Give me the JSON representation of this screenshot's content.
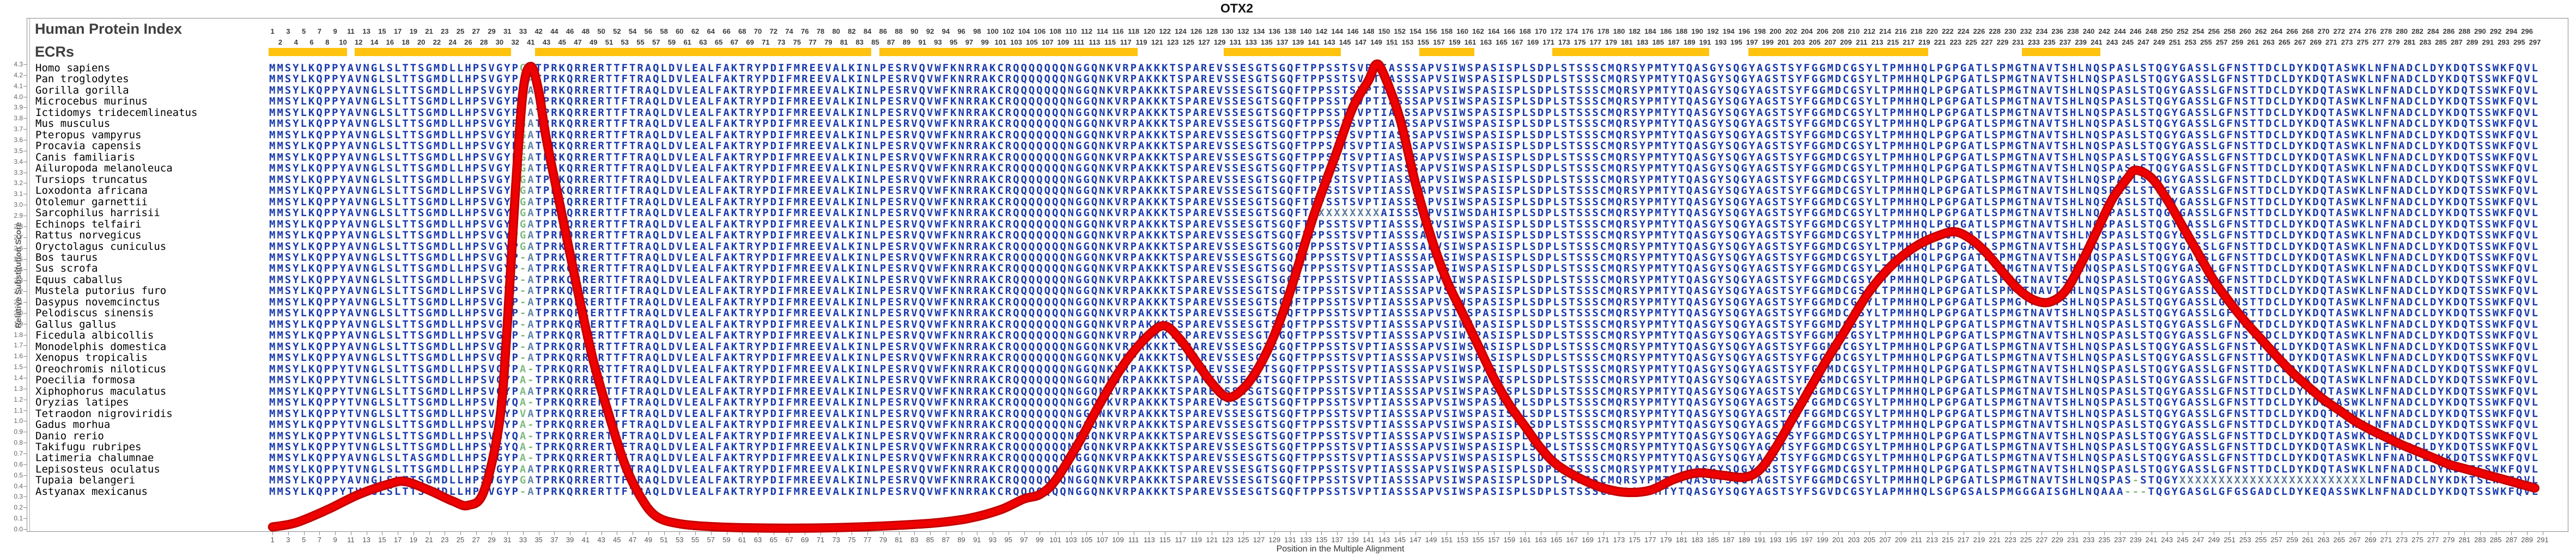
{
  "title": "OTX2",
  "left_panel": {
    "human_protein_index_label": "Human Protein Index",
    "ecrs_label": "ECRs",
    "species": [
      "Homo sapiens",
      "Pan troglodytes",
      "Gorilla gorilla",
      "Microcebus murinus",
      "Ictidomys tridecemlineatus",
      "Mus musculus",
      "Pteropus vampyrus",
      "Procavia capensis",
      "Canis familiaris",
      "Ailuropoda melanoleuca",
      "Tursiops truncatus",
      "Loxodonta africana",
      "Otolemur garnettii",
      "Sarcophilus harrisii",
      "Echinops telfairi",
      "Rattus norvegicus",
      "Oryctolagus cuniculus",
      "Bos taurus",
      "Sus scrofa",
      "Equus caballus",
      "Mustela putorius furo",
      "Dasypus novemcinctus",
      "Pelodiscus sinensis",
      "Gallus gallus",
      "Ficedula albicollis",
      "Monodelphis domestica",
      "Xenopus tropicalis",
      "Oreochromis niloticus",
      "Poecilia formosa",
      "Xiphophorus maculatus",
      "Oryzias latipes",
      "Tetraodon nigroviridis",
      "Gadus morhua",
      "Danio rerio",
      "Takifugu rubripes",
      "Latimeria chalumnae",
      "Lepisosteus oculatus",
      "Tupaia belangeri",
      "Astyanax mexicanus"
    ]
  },
  "axes": {
    "y_label": "Relative Substitution Score",
    "y_min": 0.0,
    "y_max": 4.3,
    "y_step": 0.1,
    "x_label": "Position in the Multiple Alignment",
    "bottom_numbering": "odd alignment positions 1-291",
    "top_numbering": "Human Protein Index: 1-33 then 41-297 (34-40 skipped), staggered odd/even rows"
  },
  "alignment": {
    "n_columns": 290,
    "n_rows": 39,
    "reference_sequence": "MMSYLKQPPYAVNGLSLTTSGMDLLHPSVGYPGATPRKQRRERTTFTRAQLDVLEALFAKTRYPDIFMREEVALKINLPESRVQVWFKNRRAKCRQQQQQQQNGGQNKVRPAKKKTSPAREVSSESGTSGQFTPPSSTSVPTIASSSAPVSIWSPASISPLSDPLSTSSSCMQRSYPMTYTQASGYSQGYAGSTSYFGGMDCGSYLTPMHHQLPGPGATLSPMGTNAVTSHLNQSPASLSTQGYGASSLGFNSTTDCLDYKDQTASWKLNFNADCLDYKDQTSSWKFQVL",
    "observed_row_diffs": {
      "14": {
        "cols": {
          "143": "A",
          "144": "I",
          "155": "D",
          "157": "H"
        },
        "xrun": [
          135,
          142
        ]
      },
      "18": {
        "cols": {
          "33": "-"
        }
      },
      "19": {
        "cols": {
          "33": "-"
        }
      },
      "20": {
        "cols": {
          "33": "-"
        }
      },
      "21": {
        "cols": {
          "33": "-"
        }
      },
      "22": {
        "cols": {
          "33": "-"
        }
      },
      "23": {
        "cols": {
          "33": "-"
        }
      },
      "24": {
        "cols": {
          "33": "-"
        }
      },
      "25": {
        "cols": {
          "33": "-"
        }
      },
      "26": {
        "cols": {
          "33": "-"
        }
      },
      "27": {
        "cols": {
          "33": "-"
        }
      },
      "28": {
        "cols": {
          "11": "T",
          "33": "A",
          "34": "-"
        }
      },
      "29": {
        "cols": {
          "11": "T",
          "33": "A",
          "34": "-"
        }
      },
      "30": {
        "cols": {
          "11": "T",
          "33": "A",
          "34": "A"
        }
      },
      "31": {
        "cols": {
          "11": "T",
          "32": "Q",
          "33": "A",
          "34": "-"
        }
      },
      "32": {
        "cols": {
          "11": "T",
          "33": "V",
          "34": "A"
        }
      },
      "33": {
        "cols": {
          "11": "T",
          "33": "A",
          "34": "-"
        }
      },
      "34": {
        "cols": {
          "11": "T",
          "32": "Q",
          "33": "A",
          "34": "-"
        }
      },
      "35": {
        "cols": {
          "11": "T",
          "32": "Q",
          "33": "A",
          "34": "-"
        }
      },
      "36": {
        "cols": {
          "19": "A",
          "33": "A",
          "34": "-"
        }
      },
      "37": {
        "cols": {
          "11": "T",
          "33": "A",
          "34": "A"
        }
      },
      "38": {
        "cols": {
          "239": "-",
          "277": "N",
          "281": "K",
          "284": "L"
        },
        "xrun": [
          245,
          268
        ]
      },
      "39": {
        "cols": {
          "11": "T",
          "33": "-",
          "198": "S",
          "200": "V",
          "207": "A",
          "214": "S",
          "218": "S",
          "219": "A",
          "225": "G",
          "226": "G",
          "228": "I",
          "229": "S",
          "230": "G",
          "235": "A",
          "236": "A",
          "237": "A",
          "238": "-",
          "239": "-",
          "240": "-",
          "248": "G",
          "252": "G",
          "254": "G",
          "255": "A",
          "262": "E",
          "264": "A",
          "265": "S"
        }
      }
    },
    "ecr_segments_columns": [
      [
        1,
        10
      ],
      [
        12,
        31
      ],
      [
        35,
        77
      ],
      [
        79,
        111
      ],
      [
        123,
        137
      ],
      [
        148,
        154
      ],
      [
        165,
        184
      ],
      [
        190,
        212
      ],
      [
        225,
        234
      ]
    ]
  },
  "chart_data": {
    "type": "line",
    "title": "OTX2",
    "xlabel": "Position in the Multiple Alignment",
    "ylabel": "Relative Substitution Score",
    "ylim": [
      0.0,
      4.3
    ],
    "xlim": [
      1,
      291
    ],
    "legend_position": "none",
    "grid": false,
    "series_name": "relative substitution score",
    "points": [
      [
        1,
        0.02
      ],
      [
        4,
        0.06
      ],
      [
        8,
        0.18
      ],
      [
        12,
        0.32
      ],
      [
        16,
        0.42
      ],
      [
        18,
        0.44
      ],
      [
        21,
        0.36
      ],
      [
        24,
        0.26
      ],
      [
        26,
        0.22
      ],
      [
        28,
        0.35
      ],
      [
        30,
        1.0
      ],
      [
        31,
        1.9
      ],
      [
        32,
        3.1
      ],
      [
        33,
        4.05
      ],
      [
        34,
        4.28
      ],
      [
        35,
        4.05
      ],
      [
        36,
        3.6
      ],
      [
        38,
        2.9
      ],
      [
        40,
        2.2
      ],
      [
        42,
        1.55
      ],
      [
        44,
        1.05
      ],
      [
        46,
        0.6
      ],
      [
        48,
        0.3
      ],
      [
        50,
        0.12
      ],
      [
        53,
        0.05
      ],
      [
        58,
        0.02
      ],
      [
        64,
        0.01
      ],
      [
        70,
        0.01
      ],
      [
        76,
        0.02
      ],
      [
        82,
        0.04
      ],
      [
        86,
        0.06
      ],
      [
        90,
        0.1
      ],
      [
        94,
        0.18
      ],
      [
        97,
        0.28
      ],
      [
        99,
        0.32
      ],
      [
        101,
        0.45
      ],
      [
        104,
        0.8
      ],
      [
        107,
        1.2
      ],
      [
        110,
        1.55
      ],
      [
        113,
        1.8
      ],
      [
        115,
        1.88
      ],
      [
        117,
        1.75
      ],
      [
        119,
        1.55
      ],
      [
        121,
        1.35
      ],
      [
        123,
        1.22
      ],
      [
        125,
        1.3
      ],
      [
        127,
        1.5
      ],
      [
        129,
        1.8
      ],
      [
        131,
        2.2
      ],
      [
        134,
        2.9
      ],
      [
        137,
        3.5
      ],
      [
        139,
        3.9
      ],
      [
        141,
        4.15
      ],
      [
        142,
        4.3
      ],
      [
        143,
        4.2
      ],
      [
        145,
        3.8
      ],
      [
        147,
        3.2
      ],
      [
        149,
        2.7
      ],
      [
        151,
        2.3
      ],
      [
        153,
        2.0
      ],
      [
        155,
        1.7
      ],
      [
        157,
        1.4
      ],
      [
        159,
        1.15
      ],
      [
        161,
        0.95
      ],
      [
        163,
        0.75
      ],
      [
        165,
        0.6
      ],
      [
        168,
        0.47
      ],
      [
        171,
        0.38
      ],
      [
        174,
        0.34
      ],
      [
        177,
        0.36
      ],
      [
        180,
        0.46
      ],
      [
        183,
        0.52
      ],
      [
        186,
        0.5
      ],
      [
        189,
        0.48
      ],
      [
        191,
        0.55
      ],
      [
        193,
        0.75
      ],
      [
        195,
        1.0
      ],
      [
        197,
        1.25
      ],
      [
        199,
        1.5
      ],
      [
        202,
        1.85
      ],
      [
        205,
        2.2
      ],
      [
        208,
        2.45
      ],
      [
        211,
        2.62
      ],
      [
        214,
        2.72
      ],
      [
        216,
        2.75
      ],
      [
        218,
        2.68
      ],
      [
        220,
        2.55
      ],
      [
        222,
        2.38
      ],
      [
        224,
        2.22
      ],
      [
        226,
        2.12
      ],
      [
        228,
        2.1
      ],
      [
        230,
        2.2
      ],
      [
        232,
        2.45
      ],
      [
        234,
        2.75
      ],
      [
        236,
        3.05
      ],
      [
        238,
        3.25
      ],
      [
        239,
        3.32
      ],
      [
        241,
        3.25
      ],
      [
        243,
        3.05
      ],
      [
        245,
        2.8
      ],
      [
        247,
        2.55
      ],
      [
        249,
        2.3
      ],
      [
        251,
        2.1
      ],
      [
        253,
        1.92
      ],
      [
        255,
        1.76
      ],
      [
        257,
        1.6
      ],
      [
        259,
        1.45
      ],
      [
        261,
        1.32
      ],
      [
        263,
        1.2
      ],
      [
        265,
        1.1
      ],
      [
        267,
        1.0
      ],
      [
        269,
        0.92
      ],
      [
        271,
        0.85
      ],
      [
        273,
        0.78
      ],
      [
        275,
        0.72
      ],
      [
        277,
        0.66
      ],
      [
        279,
        0.6
      ],
      [
        281,
        0.56
      ],
      [
        283,
        0.52
      ],
      [
        285,
        0.48
      ],
      [
        287,
        0.44
      ],
      [
        289,
        0.4
      ],
      [
        290,
        0.38
      ]
    ]
  },
  "colors": {
    "letter_blue": "#1a3aad",
    "letter_green": "#7fbb80",
    "letter_slate": "#6284a8",
    "letter_x": "#5b7a9e",
    "ecr_yellow": "#ffc20e",
    "curve_red": "#ef0000",
    "curve_edge": "#c30000",
    "frame_gray": "#8a8a8a"
  }
}
